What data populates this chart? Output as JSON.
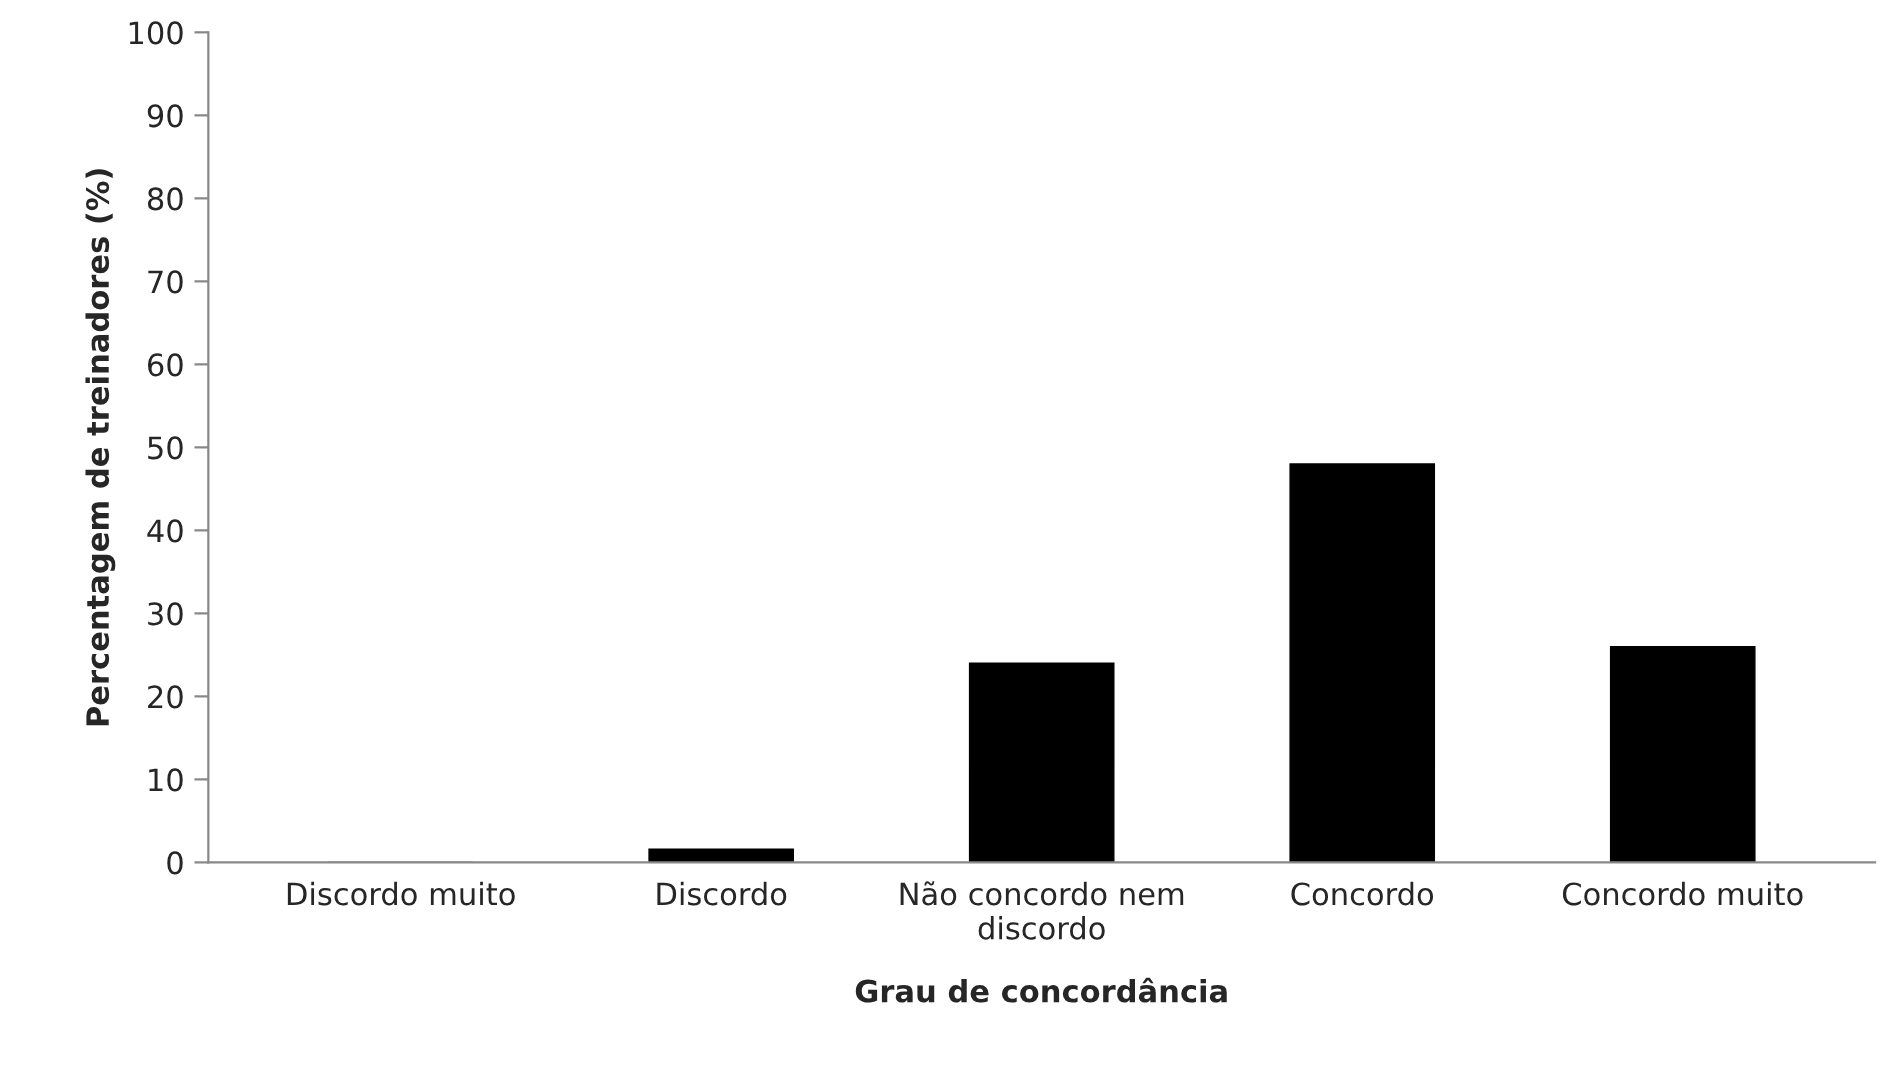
{
  "chart_data": {
    "type": "bar",
    "xlabel": "Grau de concordância",
    "ylabel": "Percentagem de treinadores (%)",
    "categories": [
      "Discordo muito",
      "Discordo",
      "Não concordo nem\ndiscordo",
      "Concordo",
      "Concordo muito"
    ],
    "values": [
      0,
      1.6,
      24,
      48,
      26
    ],
    "color": "#000000",
    "ylim": [
      0,
      100
    ],
    "yticks": [
      0,
      10,
      20,
      30,
      40,
      50,
      60,
      70,
      80,
      90,
      100
    ],
    "grid": false,
    "legend": false
  }
}
